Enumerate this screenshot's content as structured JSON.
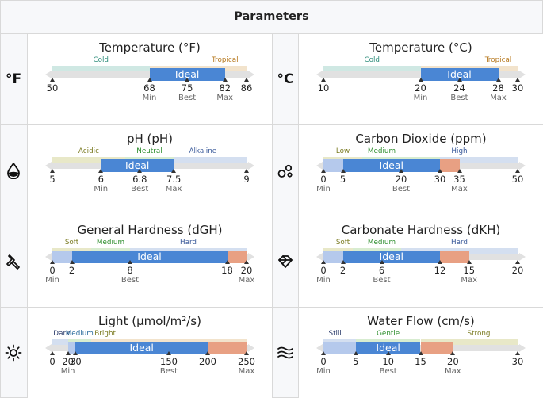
{
  "header": {
    "title": "Parameters"
  },
  "cards": [
    {
      "id": "temp-f",
      "icon": "fahrenheit-icon",
      "icon_text": "°F",
      "title": "Temperature (°F)",
      "range": [
        50,
        86
      ],
      "zones": [
        {
          "label": "Cold",
          "from": 50,
          "to": 68,
          "color": "#cfe8e3",
          "text": "#2c8c7a"
        },
        {
          "label": "Tropical",
          "from": 68,
          "to": 86,
          "color": "#f2e3cc",
          "text": "#b7791f"
        }
      ],
      "segments": [
        {
          "from": 68,
          "to": 82,
          "color": "#4a86d4",
          "label": "Ideal"
        }
      ],
      "ticks": [
        {
          "v": 50,
          "label": "50",
          "sub": ""
        },
        {
          "v": 68,
          "label": "68",
          "sub": "Min"
        },
        {
          "v": 75,
          "label": "75",
          "sub": "Best"
        },
        {
          "v": 82,
          "label": "82",
          "sub": "Max"
        },
        {
          "v": 86,
          "label": "86",
          "sub": ""
        }
      ],
      "zone_label_pos": [
        {
          "label": "Cold",
          "v": 59
        },
        {
          "label": "Tropical",
          "v": 82
        }
      ]
    },
    {
      "id": "temp-c",
      "icon": "celsius-icon",
      "icon_text": "°C",
      "title": "Temperature (°C)",
      "range": [
        10,
        30
      ],
      "zones": [
        {
          "label": "Cold",
          "from": 10,
          "to": 20,
          "color": "#cfe8e3",
          "text": "#2c8c7a"
        },
        {
          "label": "Tropical",
          "from": 20,
          "to": 30,
          "color": "#f2e3cc",
          "text": "#b7791f"
        }
      ],
      "segments": [
        {
          "from": 20,
          "to": 28,
          "color": "#4a86d4",
          "label": "Ideal"
        }
      ],
      "ticks": [
        {
          "v": 10,
          "label": "10",
          "sub": ""
        },
        {
          "v": 20,
          "label": "20",
          "sub": "Min"
        },
        {
          "v": 24,
          "label": "24",
          "sub": "Best"
        },
        {
          "v": 28,
          "label": "28",
          "sub": "Max"
        },
        {
          "v": 30,
          "label": "30",
          "sub": ""
        }
      ],
      "zone_label_pos": [
        {
          "label": "Cold",
          "v": 15
        },
        {
          "label": "Tropical",
          "v": 28
        }
      ]
    },
    {
      "id": "ph",
      "icon": "drop-icon",
      "icon_text": "",
      "title": "pH (pH)",
      "range": [
        5,
        9
      ],
      "zones": [
        {
          "label": "Acidic",
          "from": 5,
          "to": 6.5,
          "color": "#e8e8c8",
          "text": "#7a7a20"
        },
        {
          "label": "Neutral",
          "from": 6.5,
          "to": 7.5,
          "color": "#d7ecd0",
          "text": "#2f8f2f"
        },
        {
          "label": "Alkaline",
          "from": 7.5,
          "to": 9,
          "color": "#d4dff0",
          "text": "#3a5a9a"
        }
      ],
      "segments": [
        {
          "from": 6,
          "to": 7.5,
          "color": "#4a86d4",
          "label": "Ideal"
        }
      ],
      "ticks": [
        {
          "v": 5,
          "label": "5",
          "sub": ""
        },
        {
          "v": 6,
          "label": "6",
          "sub": "Min"
        },
        {
          "v": 6.8,
          "label": "6.8",
          "sub": "Best"
        },
        {
          "v": 7.5,
          "label": "7.5",
          "sub": "Max"
        },
        {
          "v": 9,
          "label": "9",
          "sub": ""
        }
      ],
      "zone_label_pos": [
        {
          "label": "Acidic",
          "v": 5.75
        },
        {
          "label": "Neutral",
          "v": 7.0
        },
        {
          "label": "Alkaline",
          "v": 8.1
        }
      ]
    },
    {
      "id": "co2",
      "icon": "bubbles-icon",
      "icon_text": "",
      "title": "Carbon Dioxide (ppm)",
      "range": [
        0,
        50
      ],
      "zones": [
        {
          "label": "Low",
          "from": 0,
          "to": 10,
          "color": "#e8e8c8",
          "text": "#7a7a20"
        },
        {
          "label": "Medium",
          "from": 10,
          "to": 30,
          "color": "#d7ecd0",
          "text": "#2f8f2f"
        },
        {
          "label": "High",
          "from": 30,
          "to": 50,
          "color": "#d4dff0",
          "text": "#3a5a9a"
        }
      ],
      "segments": [
        {
          "from": 0,
          "to": 5,
          "color": "#b5c9ec",
          "label": ""
        },
        {
          "from": 5,
          "to": 30,
          "color": "#4a86d4",
          "label": "Ideal"
        },
        {
          "from": 30,
          "to": 35,
          "color": "#e8a083",
          "label": ""
        }
      ],
      "ticks": [
        {
          "v": 0,
          "label": "0",
          "sub": "Min"
        },
        {
          "v": 5,
          "label": "5",
          "sub": ""
        },
        {
          "v": 20,
          "label": "20",
          "sub": "Best"
        },
        {
          "v": 30,
          "label": "30",
          "sub": ""
        },
        {
          "v": 35,
          "label": "35",
          "sub": "Max"
        },
        {
          "v": 50,
          "label": "50",
          "sub": ""
        }
      ],
      "zone_label_pos": [
        {
          "label": "Low",
          "v": 5
        },
        {
          "label": "Medium",
          "v": 15
        },
        {
          "label": "High",
          "v": 35
        }
      ]
    },
    {
      "id": "gh",
      "icon": "hardness-icon",
      "icon_text": "",
      "title": "General Hardness (dGH)",
      "range": [
        0,
        20
      ],
      "zones": [
        {
          "label": "Soft",
          "from": 0,
          "to": 4,
          "color": "#e8e8c8",
          "text": "#7a7a20"
        },
        {
          "label": "Medium",
          "from": 4,
          "to": 8,
          "color": "#d7ecd0",
          "text": "#2f8f2f"
        },
        {
          "label": "Hard",
          "from": 8,
          "to": 20,
          "color": "#d4dff0",
          "text": "#3a5a9a"
        }
      ],
      "segments": [
        {
          "from": 0,
          "to": 2,
          "color": "#b5c9ec",
          "label": ""
        },
        {
          "from": 2,
          "to": 18,
          "color": "#4a86d4",
          "label": "Ideal"
        },
        {
          "from": 18,
          "to": 20,
          "color": "#e8a083",
          "label": ""
        }
      ],
      "ticks": [
        {
          "v": 0,
          "label": "0",
          "sub": "Min"
        },
        {
          "v": 2,
          "label": "2",
          "sub": ""
        },
        {
          "v": 8,
          "label": "8",
          "sub": "Best"
        },
        {
          "v": 18,
          "label": "18",
          "sub": ""
        },
        {
          "v": 20,
          "label": "20",
          "sub": "Max"
        }
      ],
      "zone_label_pos": [
        {
          "label": "Soft",
          "v": 2
        },
        {
          "label": "Medium",
          "v": 6
        },
        {
          "label": "Hard",
          "v": 14
        }
      ]
    },
    {
      "id": "kh",
      "icon": "gem-icon",
      "icon_text": "",
      "title": "Carbonate Hardness (dKH)",
      "range": [
        0,
        20
      ],
      "zones": [
        {
          "label": "Soft",
          "from": 0,
          "to": 3,
          "color": "#e8e8c8",
          "text": "#7a7a20"
        },
        {
          "label": "Medium",
          "from": 3,
          "to": 8,
          "color": "#d7ecd0",
          "text": "#2f8f2f"
        },
        {
          "label": "Hard",
          "from": 8,
          "to": 20,
          "color": "#d4dff0",
          "text": "#3a5a9a"
        }
      ],
      "segments": [
        {
          "from": 0,
          "to": 2,
          "color": "#b5c9ec",
          "label": ""
        },
        {
          "from": 2,
          "to": 12,
          "color": "#4a86d4",
          "label": "Ideal"
        },
        {
          "from": 12,
          "to": 15,
          "color": "#e8a083",
          "label": ""
        }
      ],
      "ticks": [
        {
          "v": 0,
          "label": "0",
          "sub": "Min"
        },
        {
          "v": 2,
          "label": "2",
          "sub": ""
        },
        {
          "v": 6,
          "label": "6",
          "sub": "Best"
        },
        {
          "v": 12,
          "label": "12",
          "sub": ""
        },
        {
          "v": 15,
          "label": "15",
          "sub": "Max"
        },
        {
          "v": 20,
          "label": "20",
          "sub": ""
        }
      ],
      "zone_label_pos": [
        {
          "label": "Soft",
          "v": 2
        },
        {
          "label": "Medium",
          "v": 6
        },
        {
          "label": "Hard",
          "v": 14
        }
      ]
    },
    {
      "id": "light",
      "icon": "sun-icon",
      "icon_text": "",
      "title": "Light (µmol/m²/s)",
      "range": [
        0,
        250
      ],
      "zones": [
        {
          "label": "Dark",
          "from": 0,
          "to": 20,
          "color": "#d4dff0",
          "text": "#2a3a6a"
        },
        {
          "label": "Medium",
          "from": 20,
          "to": 50,
          "color": "#d7ecd0",
          "text": "#2f6f9f"
        },
        {
          "label": "Bright",
          "from": 50,
          "to": 250,
          "color": "#f2e3cc",
          "text": "#7a7a20"
        }
      ],
      "segments": [
        {
          "from": 20,
          "to": 30,
          "color": "#b5c9ec",
          "label": ""
        },
        {
          "from": 30,
          "to": 200,
          "color": "#4a86d4",
          "label": "Ideal"
        },
        {
          "from": 200,
          "to": 250,
          "color": "#e8a083",
          "label": ""
        }
      ],
      "ticks": [
        {
          "v": 0,
          "label": "0",
          "sub": ""
        },
        {
          "v": 20,
          "label": "20",
          "sub": "Min"
        },
        {
          "v": 30,
          "label": "30",
          "sub": ""
        },
        {
          "v": 150,
          "label": "150",
          "sub": "Best"
        },
        {
          "v": 200,
          "label": "200",
          "sub": ""
        },
        {
          "v": 250,
          "label": "250",
          "sub": "Max"
        }
      ],
      "zone_label_pos": [
        {
          "label": "Dark",
          "v": 12
        },
        {
          "label": "Medium",
          "v": 35
        },
        {
          "label": "Bright",
          "v": 68
        }
      ]
    },
    {
      "id": "flow",
      "icon": "waves-icon",
      "icon_text": "",
      "title": "Water Flow (cm/s)",
      "range": [
        0,
        30
      ],
      "zones": [
        {
          "label": "Still",
          "from": 0,
          "to": 5,
          "color": "#d4dff0",
          "text": "#2a3a6a"
        },
        {
          "label": "Gentle",
          "from": 5,
          "to": 15,
          "color": "#d7ecd0",
          "text": "#2f8f2f"
        },
        {
          "label": "Strong",
          "from": 15,
          "to": 30,
          "color": "#e8e8c8",
          "text": "#7a7a20"
        }
      ],
      "segments": [
        {
          "from": 0,
          "to": 5,
          "color": "#b5c9ec",
          "label": ""
        },
        {
          "from": 5,
          "to": 15,
          "color": "#4a86d4",
          "label": "Ideal"
        },
        {
          "from": 15,
          "to": 20,
          "color": "#e8a083",
          "label": ""
        }
      ],
      "ticks": [
        {
          "v": 0,
          "label": "0",
          "sub": "Min"
        },
        {
          "v": 5,
          "label": "5",
          "sub": ""
        },
        {
          "v": 10,
          "label": "10",
          "sub": "Best"
        },
        {
          "v": 15,
          "label": "15",
          "sub": ""
        },
        {
          "v": 20,
          "label": "20",
          "sub": "Max"
        },
        {
          "v": 30,
          "label": "30",
          "sub": ""
        }
      ],
      "zone_label_pos": [
        {
          "label": "Still",
          "v": 1.8
        },
        {
          "label": "Gentle",
          "v": 10
        },
        {
          "label": "Strong",
          "v": 24
        }
      ]
    }
  ]
}
